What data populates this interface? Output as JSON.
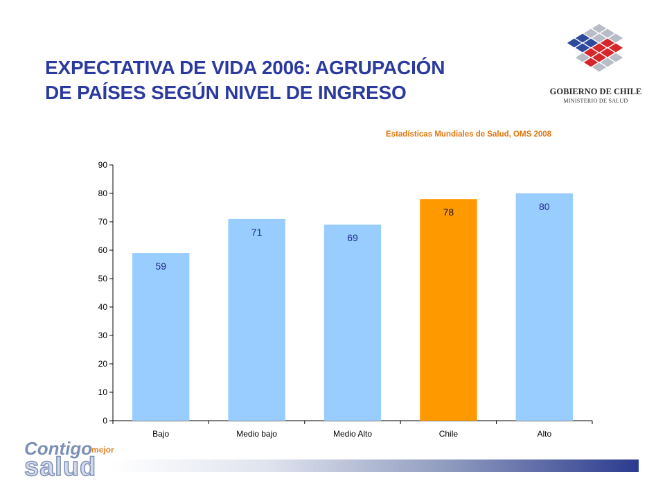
{
  "title": {
    "line1": "EXPECTATIVA DE VIDA 2006: AGRUPACIÓN",
    "line2": "DE PAÍSES SEGÚN NIVEL DE INGRESO"
  },
  "source": "Estadísticas  Mundiales de Salud, OMS 2008",
  "logo": {
    "name": "GOBIERNO DE CHILE",
    "subtitle": "MINISTERIO DE SALUD",
    "colors": {
      "blue": "#2f4a9c",
      "red": "#d7262b",
      "gray": "#b8bcc6"
    }
  },
  "footer_logo": {
    "word1": "Contigo",
    "word2": "mejor",
    "word3": "salud"
  },
  "colors": {
    "title": "#2b3a9e",
    "source": "#e0760e",
    "bar_default": "#99ccff",
    "bar_highlight": "#ff9900",
    "label_default": "#1f2a8a",
    "label_highlight": "#1a1a1a"
  },
  "chart_data": {
    "type": "bar",
    "categories": [
      "Bajo",
      "Medio bajo",
      "Medio Alto",
      "Chile",
      "Alto"
    ],
    "values": [
      59,
      71,
      69,
      78,
      80
    ],
    "highlight_index": 3,
    "ylim": [
      0,
      90
    ],
    "yticks": [
      0,
      10,
      20,
      30,
      40,
      50,
      60,
      70,
      80,
      90
    ],
    "xlabel": "",
    "ylabel": "",
    "grid": false,
    "data_labels": true
  }
}
